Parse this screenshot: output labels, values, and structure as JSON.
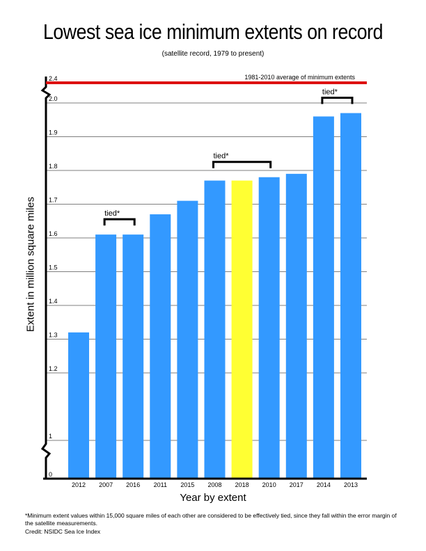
{
  "chart_data": {
    "type": "bar",
    "title": "Lowest sea ice minimum extents on record",
    "subtitle": "(satellite record, 1979 to present)",
    "xlabel": "Year by extent",
    "ylabel": "Extent in million square miles",
    "categories": [
      "2012",
      "2007",
      "2016",
      "2011",
      "2015",
      "2008",
      "2018",
      "2010",
      "2017",
      "2014",
      "2013"
    ],
    "values": [
      1.32,
      1.61,
      1.61,
      1.67,
      1.71,
      1.77,
      1.77,
      1.78,
      1.79,
      1.96,
      1.97
    ],
    "highlight_category": "2018",
    "bar_color": "#3399ff",
    "highlight_color": "#ffff33",
    "yticks": [
      "0",
      "1",
      "1.2",
      "1.3",
      "1.4",
      "1.5",
      "1.6",
      "1.7",
      "1.8",
      "1.9",
      "2.0",
      "2.4"
    ],
    "grid": true,
    "reference_line": {
      "value": 2.4,
      "label": "1981-2010 average of minimum extents",
      "color": "#dd1111"
    },
    "tied_groups": [
      {
        "label": "tied*",
        "categories": [
          "2007",
          "2016"
        ]
      },
      {
        "label": "tied*",
        "categories": [
          "2008",
          "2010"
        ]
      },
      {
        "label": "tied*",
        "categories": [
          "2014",
          "2013"
        ]
      }
    ]
  },
  "footnote": "*Minimum extent values within 15,000 square miles of each other are considered to be effectively tied, since they fall within the error margin of the satellite measurements.",
  "credit": "Credit: NSIDC Sea Ice Index"
}
